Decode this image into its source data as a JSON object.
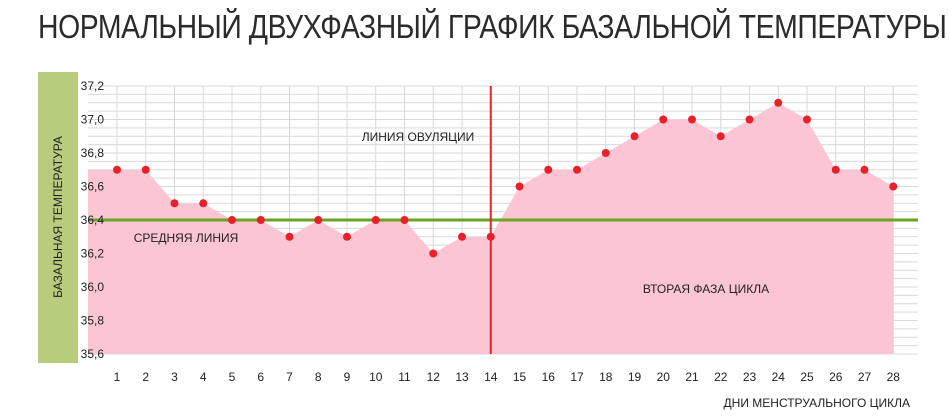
{
  "chart_data": {
    "type": "area",
    "title": "НОРМАЛЬНЫЙ ДВУХФАЗНЫЙ ГРАФИК БАЗАЛЬНОЙ ТЕМПЕРАТУРЫ",
    "xlabel": "ДНИ МЕНСТРУАЛЬНОГО ЦИКЛА",
    "ylabel": "БАЗАЛЬНАЯ ТЕМПЕРАТУРА",
    "x": [
      1,
      2,
      3,
      4,
      5,
      6,
      7,
      8,
      9,
      10,
      11,
      12,
      13,
      14,
      15,
      16,
      17,
      18,
      19,
      20,
      21,
      22,
      23,
      24,
      25,
      26,
      27,
      28
    ],
    "y": [
      36.7,
      36.7,
      36.5,
      36.5,
      36.4,
      36.4,
      36.3,
      36.4,
      36.3,
      36.4,
      36.4,
      36.2,
      36.3,
      36.3,
      36.6,
      36.7,
      36.7,
      36.8,
      36.9,
      37.0,
      37.0,
      36.9,
      37.0,
      37.1,
      37.0,
      36.7,
      36.7,
      36.6
    ],
    "ylim": [
      35.6,
      37.2
    ],
    "yticks": [
      "35,6",
      "35,8",
      "36,0",
      "36,2",
      "36,4",
      "36,6",
      "36,8",
      "37,0",
      "37,2"
    ],
    "xticks": [
      "1",
      "2",
      "3",
      "4",
      "5",
      "6",
      "7",
      "8",
      "9",
      "10",
      "11",
      "12",
      "13",
      "14",
      "15",
      "16",
      "17",
      "18",
      "19",
      "20",
      "21",
      "22",
      "23",
      "24",
      "25",
      "26",
      "27",
      "28"
    ],
    "grid": true,
    "average_line": {
      "value": 36.4,
      "label": "СРЕДНЯЯ ЛИНИЯ",
      "color": "#6aa51e"
    },
    "ovulation_line": {
      "x": 14,
      "label": "ЛИНИЯ ОВУЛЯЦИИ",
      "color": "#e8202a"
    },
    "phase_label": "ВТОРАЯ ФАЗА ЦИКЛА",
    "colors": {
      "area": "#fcc5d4",
      "points": "#e8202a",
      "grid": "#d9d9d9"
    }
  }
}
